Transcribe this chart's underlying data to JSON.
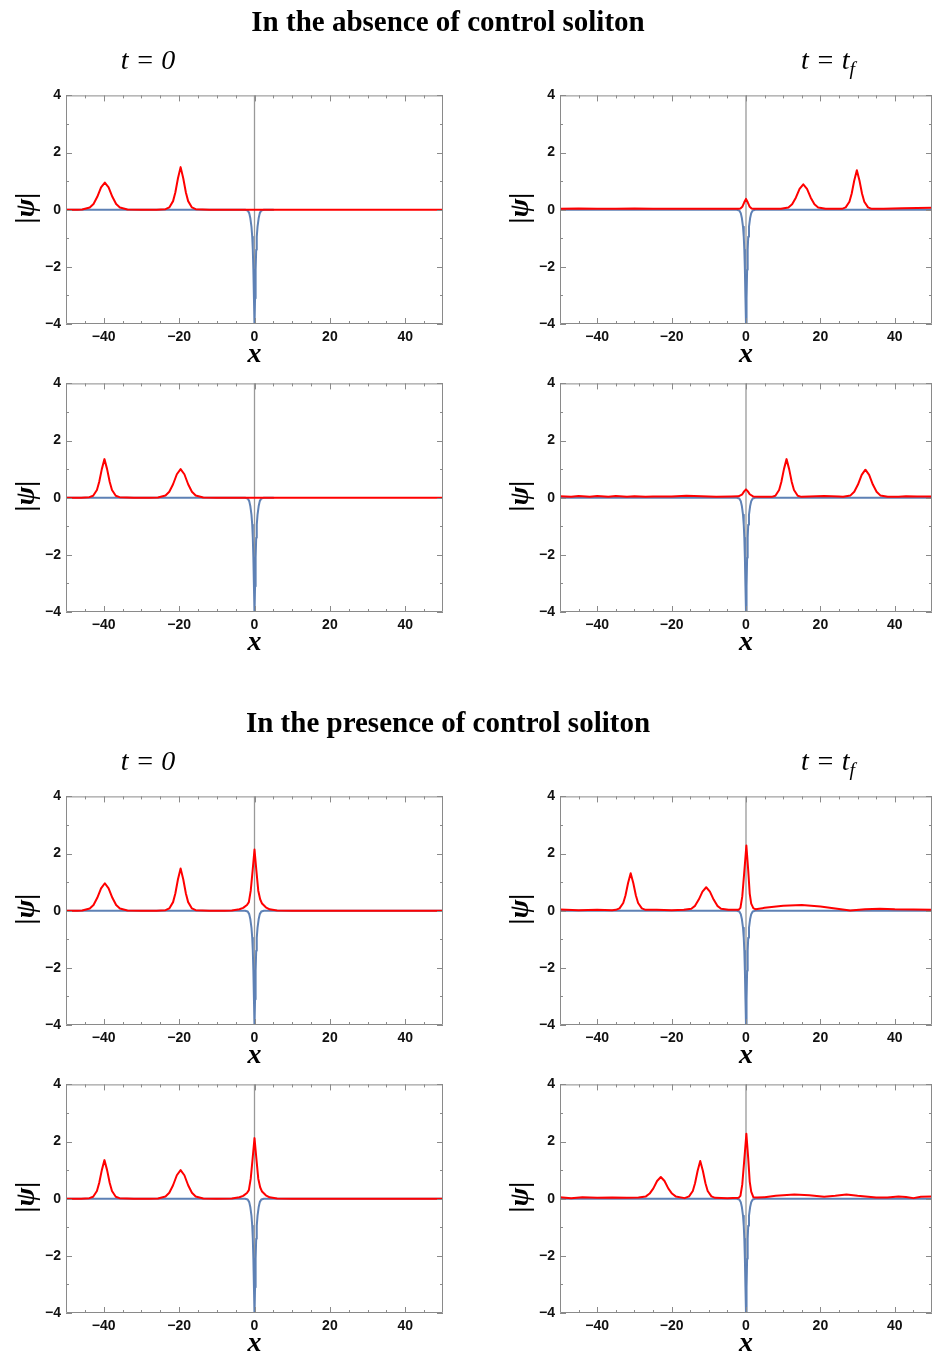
{
  "chart_data": [
    {
      "type": "line",
      "title": "In the absence of control soliton",
      "subtitle": "t = 0",
      "xlabel": "x",
      "ylabel": "|ψ|",
      "xlim": [
        -50,
        50
      ],
      "ylim": [
        -4,
        4
      ],
      "xticks": [
        {
          "value": -45,
          "label": null
        },
        {
          "value": -40,
          "label": "−40"
        },
        {
          "value": -35,
          "label": null
        },
        {
          "value": -30,
          "label": null
        },
        {
          "value": -25,
          "label": null
        },
        {
          "value": -20,
          "label": "−20"
        },
        {
          "value": -15,
          "label": null
        },
        {
          "value": -10,
          "label": null
        },
        {
          "value": -5,
          "label": null
        },
        0,
        {
          "value": 5,
          "label": null
        },
        {
          "value": 10,
          "label": null
        },
        {
          "value": 15,
          "label": null
        },
        20,
        {
          "value": 25,
          "label": null
        },
        {
          "value": 30,
          "label": null
        },
        {
          "value": 35,
          "label": null
        },
        40,
        {
          "value": 45,
          "label": null
        }
      ],
      "yticks": [
        {
          "value": -4,
          "label": "−4"
        },
        {
          "value": -3,
          "label": null
        },
        {
          "value": -2,
          "label": "−2"
        },
        {
          "value": -1,
          "label": null
        },
        0,
        {
          "value": 1,
          "label": null
        },
        2,
        {
          "value": 3,
          "label": null
        },
        4
      ],
      "ref_lines": [
        {
          "axis": "x",
          "value": 0,
          "color": "#999999"
        }
      ],
      "series": [
        {
          "color": "#ff0000",
          "x": [
            -50,
            -47,
            -45.7,
            -43.7,
            -42.7,
            -41.7,
            -40.7,
            -39.7,
            -38.7,
            -37.7,
            -36.7,
            -35.7,
            -33.7,
            -30,
            -26,
            -23.6,
            -22.6,
            -21.6,
            -21,
            -20.3,
            -19.6,
            -18.9,
            -18.2,
            -17.6,
            -16.6,
            -15.6,
            -12,
            -5,
            0,
            5,
            20,
            35,
            50
          ],
          "values": [
            0,
            0,
            0.01,
            0.08,
            0.2,
            0.45,
            0.78,
            0.95,
            0.78,
            0.45,
            0.2,
            0.08,
            0.01,
            0,
            0,
            0.02,
            0.08,
            0.3,
            0.6,
            1.1,
            1.49,
            1.1,
            0.6,
            0.3,
            0.08,
            0.02,
            0,
            0,
            0,
            0,
            0,
            0,
            0
          ]
        },
        {
          "color": "#5e81b5",
          "x": [
            -50,
            -20,
            -5,
            -2.5,
            -1.8,
            -1.4,
            -1.1,
            -0.8,
            -0.6,
            -0.45,
            -0.3,
            -0.15,
            0,
            0.15,
            0.3,
            0.45,
            0.6,
            0.8,
            1.1,
            1.4,
            1.8,
            2.5,
            5
          ],
          "values": [
            0,
            0,
            0,
            0,
            -0.03,
            -0.12,
            -0.3,
            -0.6,
            -0.95,
            -1.4,
            -2.1,
            -3.1,
            -4,
            -3.1,
            -2.1,
            -1.4,
            -0.95,
            -0.6,
            -0.3,
            -0.12,
            -0.03,
            0,
            0
          ]
        }
      ]
    },
    {
      "type": "line",
      "subtitle": "t = t$_{f}$",
      "xlabel": "x",
      "ylabel": "|ψ|",
      "xlim": [
        -50,
        50
      ],
      "ylim": [
        -4,
        4
      ],
      "xticks": [
        {
          "value": -45,
          "label": null
        },
        {
          "value": -40,
          "label": "−40"
        },
        {
          "value": -35,
          "label": null
        },
        {
          "value": -30,
          "label": null
        },
        {
          "value": -25,
          "label": null
        },
        {
          "value": -20,
          "label": "−20"
        },
        {
          "value": -15,
          "label": null
        },
        {
          "value": -10,
          "label": null
        },
        {
          "value": -5,
          "label": null
        },
        0,
        {
          "value": 5,
          "label": null
        },
        {
          "value": 10,
          "label": null
        },
        {
          "value": 15,
          "label": null
        },
        20,
        {
          "value": 25,
          "label": null
        },
        {
          "value": 30,
          "label": null
        },
        {
          "value": 35,
          "label": null
        },
        40,
        {
          "value": 45,
          "label": null
        }
      ],
      "yticks": [
        {
          "value": -4,
          "label": "−4"
        },
        {
          "value": -3,
          "label": null
        },
        {
          "value": -2,
          "label": "−2"
        },
        {
          "value": -1,
          "label": null
        },
        0,
        {
          "value": 1,
          "label": null
        },
        2,
        {
          "value": 3,
          "label": null
        },
        4
      ],
      "ref_lines": [
        {
          "axis": "x",
          "value": 0,
          "color": "#999999"
        }
      ],
      "series": [
        {
          "color": "#ff0000",
          "x": [
            -50,
            -45,
            -40,
            -35,
            -30,
            -25,
            -20,
            -15,
            -10,
            -5,
            -2,
            -1.5,
            -1,
            -0.5,
            0,
            0.5,
            1,
            1.5,
            2,
            5,
            9.4,
            11.4,
            12.4,
            13.4,
            14.4,
            15.4,
            16.4,
            17.4,
            18.4,
            19.4,
            21.4,
            25,
            25.8,
            26.8,
            27.8,
            28.4,
            29.1,
            29.8,
            30.5,
            31.2,
            31.8,
            32.8,
            33.8,
            37,
            42,
            46,
            50
          ],
          "values": [
            0.03,
            0.04,
            0.03,
            0.03,
            0.04,
            0.03,
            0.03,
            0.03,
            0.03,
            0.03,
            0.03,
            0.04,
            0.1,
            0.25,
            0.38,
            0.25,
            0.1,
            0.04,
            0.03,
            0.03,
            0.03,
            0.08,
            0.19,
            0.42,
            0.73,
            0.89,
            0.73,
            0.42,
            0.19,
            0.08,
            0.03,
            0.03,
            0.03,
            0.08,
            0.28,
            0.56,
            1.02,
            1.38,
            1.02,
            0.56,
            0.28,
            0.08,
            0.03,
            0.03,
            0.05,
            0.06,
            0.07
          ]
        },
        {
          "color": "#5e81b5",
          "x": [
            -50,
            -20,
            -5,
            -2.5,
            -1.8,
            -1.4,
            -1.1,
            -0.8,
            -0.6,
            -0.45,
            -0.3,
            -0.15,
            0,
            0.15,
            0.3,
            0.45,
            0.6,
            0.8,
            1.1,
            1.4,
            1.8,
            2.5,
            5,
            20,
            50
          ],
          "values": [
            0,
            0,
            0,
            0,
            -0.03,
            -0.12,
            -0.3,
            -0.6,
            -0.95,
            -1.4,
            -2.1,
            -3.1,
            -4,
            -3.1,
            -2.1,
            -1.4,
            -0.95,
            -0.6,
            -0.3,
            -0.12,
            -0.03,
            0,
            0,
            0,
            0
          ]
        }
      ]
    },
    {
      "type": "line",
      "xlabel": "x",
      "ylabel": "|ψ|",
      "xlim": [
        -50,
        50
      ],
      "ylim": [
        -4,
        4
      ],
      "xticks": [
        {
          "value": -45,
          "label": null
        },
        {
          "value": -40,
          "label": "−40"
        },
        {
          "value": -35,
          "label": null
        },
        {
          "value": -30,
          "label": null
        },
        {
          "value": -25,
          "label": null
        },
        {
          "value": -20,
          "label": "−20"
        },
        {
          "value": -15,
          "label": null
        },
        {
          "value": -10,
          "label": null
        },
        {
          "value": -5,
          "label": null
        },
        0,
        {
          "value": 5,
          "label": null
        },
        {
          "value": 10,
          "label": null
        },
        {
          "value": 15,
          "label": null
        },
        20,
        {
          "value": 25,
          "label": null
        },
        {
          "value": 30,
          "label": null
        },
        {
          "value": 35,
          "label": null
        },
        40,
        {
          "value": 45,
          "label": null
        }
      ],
      "yticks": [
        {
          "value": -4,
          "label": "−4"
        },
        {
          "value": -3,
          "label": null
        },
        {
          "value": -2,
          "label": "−2"
        },
        {
          "value": -1,
          "label": null
        },
        0,
        {
          "value": 1,
          "label": null
        },
        2,
        {
          "value": 3,
          "label": null
        },
        4
      ],
      "ref_lines": [
        {
          "axis": "x",
          "value": 0,
          "color": "#999999"
        }
      ],
      "series": [
        {
          "color": "#ff0000",
          "x": [
            -50,
            -46,
            -43.8,
            -42.8,
            -41.8,
            -41.2,
            -40.5,
            -39.8,
            -39.1,
            -38.4,
            -37.8,
            -36.8,
            -35.8,
            -32,
            -28,
            -25.6,
            -23.6,
            -22.6,
            -21.6,
            -20.6,
            -19.6,
            -18.6,
            -17.6,
            -16.6,
            -15.6,
            -13.6,
            -10,
            -5,
            0,
            5,
            20,
            35,
            50
          ],
          "values": [
            0,
            0,
            0.02,
            0.07,
            0.27,
            0.55,
            1.0,
            1.35,
            1.0,
            0.55,
            0.27,
            0.07,
            0.02,
            0,
            0,
            0.01,
            0.08,
            0.21,
            0.47,
            0.82,
            1.0,
            0.82,
            0.47,
            0.21,
            0.08,
            0.01,
            0,
            0,
            0,
            0,
            0,
            0,
            0
          ]
        },
        {
          "color": "#5e81b5",
          "x": [
            -50,
            -20,
            -5,
            -2.5,
            -1.8,
            -1.4,
            -1.1,
            -0.8,
            -0.6,
            -0.45,
            -0.3,
            -0.15,
            0,
            0.15,
            0.3,
            0.45,
            0.6,
            0.8,
            1.1,
            1.4,
            1.8,
            2.5,
            5
          ],
          "values": [
            0,
            0,
            0,
            0,
            -0.03,
            -0.12,
            -0.3,
            -0.6,
            -0.95,
            -1.4,
            -2.1,
            -3.1,
            -4,
            -3.1,
            -2.1,
            -1.4,
            -0.95,
            -0.6,
            -0.3,
            -0.12,
            -0.03,
            0,
            0
          ]
        }
      ]
    },
    {
      "type": "line",
      "xlabel": "x",
      "ylabel": "|ψ|",
      "xlim": [
        -50,
        50
      ],
      "ylim": [
        -4,
        4
      ],
      "xticks": [
        {
          "value": -45,
          "label": null
        },
        {
          "value": -40,
          "label": "−40"
        },
        {
          "value": -35,
          "label": null
        },
        {
          "value": -30,
          "label": null
        },
        {
          "value": -25,
          "label": null
        },
        {
          "value": -20,
          "label": "−20"
        },
        {
          "value": -15,
          "label": null
        },
        {
          "value": -10,
          "label": null
        },
        {
          "value": -5,
          "label": null
        },
        0,
        {
          "value": 5,
          "label": null
        },
        {
          "value": 10,
          "label": null
        },
        {
          "value": 15,
          "label": null
        },
        20,
        {
          "value": 25,
          "label": null
        },
        {
          "value": 30,
          "label": null
        },
        {
          "value": 35,
          "label": null
        },
        40,
        {
          "value": 45,
          "label": null
        }
      ],
      "yticks": [
        {
          "value": -4,
          "label": "−4"
        },
        {
          "value": -3,
          "label": null
        },
        {
          "value": -2,
          "label": "−2"
        },
        {
          "value": -1,
          "label": null
        },
        0,
        {
          "value": 1,
          "label": null
        },
        2,
        {
          "value": 3,
          "label": null
        },
        4
      ],
      "ref_lines": [
        {
          "axis": "x",
          "value": 0,
          "color": "#999999"
        }
      ],
      "series": [
        {
          "color": "#ff0000",
          "x": [
            -50,
            -47,
            -45,
            -42,
            -40,
            -37,
            -35,
            -32,
            -30,
            -27,
            -25,
            -20,
            -16,
            -12,
            -8,
            -4,
            -2,
            -1,
            -0.5,
            0,
            0.5,
            1,
            2,
            4,
            6.9,
            7.9,
            8.9,
            9.5,
            10.2,
            10.9,
            11.6,
            12.3,
            12.9,
            13.9,
            14.9,
            17,
            21,
            25,
            26.1,
            28.1,
            29.1,
            30.1,
            31.1,
            32.1,
            33.1,
            34.1,
            35.1,
            36.1,
            38.1,
            41,
            43,
            46,
            50
          ],
          "values": [
            0.05,
            0.03,
            0.06,
            0.03,
            0.06,
            0.03,
            0.06,
            0.03,
            0.05,
            0.03,
            0.04,
            0.04,
            0.07,
            0.05,
            0.03,
            0.04,
            0.05,
            0.12,
            0.22,
            0.29,
            0.22,
            0.12,
            0.04,
            0.03,
            0.03,
            0.07,
            0.27,
            0.55,
            1.0,
            1.35,
            1.0,
            0.55,
            0.27,
            0.07,
            0.03,
            0.04,
            0.06,
            0.04,
            0.03,
            0.08,
            0.21,
            0.46,
            0.8,
            0.98,
            0.8,
            0.46,
            0.21,
            0.08,
            0.03,
            0.03,
            0.05,
            0.04,
            0.04
          ]
        },
        {
          "color": "#5e81b5",
          "x": [
            -50,
            -20,
            -5,
            -2.5,
            -1.8,
            -1.4,
            -1.1,
            -0.8,
            -0.6,
            -0.45,
            -0.3,
            -0.15,
            0,
            0.15,
            0.3,
            0.45,
            0.6,
            0.8,
            1.1,
            1.4,
            1.8,
            2.5,
            5,
            20,
            50
          ],
          "values": [
            0,
            0,
            0,
            0,
            -0.03,
            -0.12,
            -0.3,
            -0.6,
            -0.95,
            -1.4,
            -2.1,
            -3.1,
            -4,
            -3.1,
            -2.1,
            -1.4,
            -0.95,
            -0.6,
            -0.3,
            -0.12,
            -0.03,
            0,
            0,
            0,
            0
          ]
        }
      ]
    },
    {
      "type": "line",
      "title": "In the presence of control soliton",
      "subtitle": "t = 0",
      "xlabel": "x",
      "ylabel": "|ψ|",
      "xlim": [
        -50,
        50
      ],
      "ylim": [
        -4,
        4
      ],
      "xticks": [
        {
          "value": -45,
          "label": null
        },
        {
          "value": -40,
          "label": "−40"
        },
        {
          "value": -35,
          "label": null
        },
        {
          "value": -30,
          "label": null
        },
        {
          "value": -25,
          "label": null
        },
        {
          "value": -20,
          "label": "−20"
        },
        {
          "value": -15,
          "label": null
        },
        {
          "value": -10,
          "label": null
        },
        {
          "value": -5,
          "label": null
        },
        0,
        {
          "value": 5,
          "label": null
        },
        {
          "value": 10,
          "label": null
        },
        {
          "value": 15,
          "label": null
        },
        20,
        {
          "value": 25,
          "label": null
        },
        {
          "value": 30,
          "label": null
        },
        {
          "value": 35,
          "label": null
        },
        40,
        {
          "value": 45,
          "label": null
        }
      ],
      "yticks": [
        {
          "value": -4,
          "label": "−4"
        },
        {
          "value": -3,
          "label": null
        },
        {
          "value": -2,
          "label": "−2"
        },
        {
          "value": -1,
          "label": null
        },
        0,
        {
          "value": 1,
          "label": null
        },
        2,
        {
          "value": 3,
          "label": null
        },
        4
      ],
      "ref_lines": [
        {
          "axis": "x",
          "value": 0,
          "color": "#999999"
        }
      ],
      "series": [
        {
          "color": "#ff0000",
          "x": [
            -50,
            -47,
            -45.7,
            -43.7,
            -42.7,
            -41.7,
            -40.7,
            -39.7,
            -38.7,
            -37.7,
            -36.7,
            -35.7,
            -33.7,
            -30,
            -26,
            -23.6,
            -22.6,
            -21.6,
            -21,
            -20.3,
            -19.6,
            -18.9,
            -18.2,
            -17.6,
            -16.6,
            -15.6,
            -12,
            -8,
            -6,
            -4,
            -3,
            -2,
            -1.5,
            -1,
            -0.5,
            0,
            0.5,
            1,
            1.5,
            2,
            3,
            4,
            6,
            10,
            20,
            35,
            50
          ],
          "values": [
            0,
            0,
            0.01,
            0.08,
            0.2,
            0.45,
            0.78,
            0.96,
            0.78,
            0.45,
            0.2,
            0.08,
            0.01,
            0,
            0,
            0.02,
            0.08,
            0.3,
            0.6,
            1.1,
            1.48,
            1.1,
            0.6,
            0.3,
            0.08,
            0.02,
            0,
            0,
            0.01,
            0.05,
            0.1,
            0.2,
            0.3,
            0.7,
            1.4,
            2.14,
            1.4,
            0.7,
            0.4,
            0.25,
            0.12,
            0.05,
            0.01,
            0,
            0,
            0,
            0
          ]
        },
        {
          "color": "#5e81b5",
          "x": [
            -50,
            -20,
            -5,
            -2.5,
            -1.8,
            -1.4,
            -1.1,
            -0.8,
            -0.6,
            -0.45,
            -0.3,
            -0.15,
            0,
            0.15,
            0.3,
            0.45,
            0.6,
            0.8,
            1.1,
            1.4,
            1.8,
            2.5,
            5,
            20,
            50
          ],
          "values": [
            0,
            0,
            0,
            0,
            -0.03,
            -0.12,
            -0.3,
            -0.6,
            -0.95,
            -1.4,
            -2.1,
            -3.1,
            -4,
            -3.1,
            -2.1,
            -1.4,
            -0.95,
            -0.6,
            -0.3,
            -0.12,
            -0.03,
            0,
            0,
            0,
            0
          ]
        }
      ]
    },
    {
      "type": "line",
      "subtitle": "t = t$_{f}$",
      "xlabel": "x",
      "ylabel": "|ψ|",
      "xlim": [
        -50,
        50
      ],
      "ylim": [
        -4,
        4
      ],
      "xticks": [
        {
          "value": -45,
          "label": null
        },
        {
          "value": -40,
          "label": "−40"
        },
        {
          "value": -35,
          "label": null
        },
        {
          "value": -30,
          "label": null
        },
        {
          "value": -25,
          "label": null
        },
        {
          "value": -20,
          "label": "−20"
        },
        {
          "value": -15,
          "label": null
        },
        {
          "value": -10,
          "label": null
        },
        {
          "value": -5,
          "label": null
        },
        0,
        {
          "value": 5,
          "label": null
        },
        {
          "value": 10,
          "label": null
        },
        {
          "value": 15,
          "label": null
        },
        20,
        {
          "value": 25,
          "label": null
        },
        {
          "value": 30,
          "label": null
        },
        {
          "value": 35,
          "label": null
        },
        40,
        {
          "value": 45,
          "label": null
        }
      ],
      "yticks": [
        {
          "value": -4,
          "label": "−4"
        },
        {
          "value": -3,
          "label": null
        },
        {
          "value": -2,
          "label": "−2"
        },
        {
          "value": -1,
          "label": null
        },
        0,
        {
          "value": 1,
          "label": null
        },
        2,
        {
          "value": 3,
          "label": null
        },
        4
      ],
      "ref_lines": [
        {
          "axis": "x",
          "value": 0,
          "color": "#999999"
        }
      ],
      "series": [
        {
          "color": "#ff0000",
          "x": [
            -50,
            -45,
            -40,
            -36,
            -35,
            -34,
            -33,
            -32.4,
            -31.7,
            -31,
            -30.3,
            -29.6,
            -29,
            -28,
            -27,
            -24,
            -20,
            -16.7,
            -14.7,
            -13.7,
            -12.7,
            -11.7,
            -10.7,
            -9.7,
            -8.7,
            -7.7,
            -6.7,
            -4.7,
            -2,
            -1.5,
            -1,
            -0.5,
            0.1,
            0.6,
            1,
            1.4,
            2,
            2.6,
            5,
            10,
            15,
            20,
            25,
            28,
            32,
            36,
            40,
            45,
            50
          ],
          "values": [
            0.04,
            0.02,
            0.03,
            0.02,
            0.03,
            0.08,
            0.27,
            0.53,
            0.97,
            1.31,
            0.97,
            0.53,
            0.27,
            0.08,
            0.03,
            0.03,
            0.02,
            0.03,
            0.07,
            0.17,
            0.39,
            0.67,
            0.82,
            0.67,
            0.39,
            0.17,
            0.07,
            0.03,
            0.03,
            0.1,
            0.5,
            1.3,
            2.28,
            1.4,
            0.6,
            0.25,
            0.08,
            0.05,
            0.1,
            0.17,
            0.2,
            0.15,
            0.06,
            0.01,
            0.05,
            0.07,
            0.05,
            0.04,
            0.03
          ]
        },
        {
          "color": "#5e81b5",
          "x": [
            -50,
            -20,
            -5,
            -2.5,
            -1.8,
            -1.4,
            -1.1,
            -0.8,
            -0.6,
            -0.45,
            -0.3,
            -0.15,
            0,
            0.15,
            0.3,
            0.45,
            0.6,
            0.8,
            1.1,
            1.4,
            1.8,
            2.5,
            5,
            20,
            50
          ],
          "values": [
            0,
            0,
            0,
            0,
            -0.03,
            -0.12,
            -0.3,
            -0.6,
            -0.95,
            -1.4,
            -2.1,
            -3.1,
            -4,
            -3.1,
            -2.1,
            -1.4,
            -0.95,
            -0.6,
            -0.3,
            -0.12,
            -0.03,
            0,
            0,
            0,
            0
          ]
        }
      ]
    },
    {
      "type": "line",
      "xlabel": "x",
      "ylabel": "|ψ|",
      "xlim": [
        -50,
        50
      ],
      "ylim": [
        -4,
        4
      ],
      "xticks": [
        {
          "value": -45,
          "label": null
        },
        {
          "value": -40,
          "label": "−40"
        },
        {
          "value": -35,
          "label": null
        },
        {
          "value": -30,
          "label": null
        },
        {
          "value": -25,
          "label": null
        },
        {
          "value": -20,
          "label": "−20"
        },
        {
          "value": -15,
          "label": null
        },
        {
          "value": -10,
          "label": null
        },
        {
          "value": -5,
          "label": null
        },
        0,
        {
          "value": 5,
          "label": null
        },
        {
          "value": 10,
          "label": null
        },
        {
          "value": 15,
          "label": null
        },
        20,
        {
          "value": 25,
          "label": null
        },
        {
          "value": 30,
          "label": null
        },
        {
          "value": 35,
          "label": null
        },
        40,
        {
          "value": 45,
          "label": null
        }
      ],
      "yticks": [
        {
          "value": -4,
          "label": "−4"
        },
        {
          "value": -3,
          "label": null
        },
        {
          "value": -2,
          "label": "−2"
        },
        {
          "value": -1,
          "label": null
        },
        0,
        {
          "value": 1,
          "label": null
        },
        2,
        {
          "value": 3,
          "label": null
        },
        4
      ],
      "ref_lines": [
        {
          "axis": "x",
          "value": 0,
          "color": "#999999"
        }
      ],
      "series": [
        {
          "color": "#ff0000",
          "x": [
            -50,
            -46,
            -43.8,
            -42.8,
            -41.8,
            -41.2,
            -40.5,
            -39.8,
            -39.1,
            -38.4,
            -37.8,
            -36.8,
            -35.8,
            -32,
            -28,
            -25.6,
            -23.6,
            -22.6,
            -21.6,
            -20.6,
            -19.6,
            -18.6,
            -17.6,
            -16.6,
            -15.6,
            -13.6,
            -10,
            -6,
            -4,
            -3,
            -2,
            -1.5,
            -1,
            -0.5,
            0,
            0.5,
            1,
            1.5,
            2,
            3,
            4,
            6,
            10,
            20,
            35,
            50
          ],
          "values": [
            0,
            0,
            0.02,
            0.07,
            0.27,
            0.55,
            1.0,
            1.35,
            1.0,
            0.55,
            0.27,
            0.07,
            0.02,
            0,
            0,
            0.01,
            0.08,
            0.21,
            0.47,
            0.82,
            1.0,
            0.82,
            0.47,
            0.21,
            0.08,
            0.01,
            0,
            0.01,
            0.05,
            0.1,
            0.2,
            0.3,
            0.7,
            1.4,
            2.12,
            1.4,
            0.7,
            0.4,
            0.25,
            0.12,
            0.05,
            0.01,
            0,
            0,
            0,
            0
          ]
        },
        {
          "color": "#5e81b5",
          "x": [
            -50,
            -20,
            -5,
            -2.5,
            -1.8,
            -1.4,
            -1.1,
            -0.8,
            -0.6,
            -0.45,
            -0.3,
            -0.15,
            0,
            0.15,
            0.3,
            0.45,
            0.6,
            0.8,
            1.1,
            1.4,
            1.8,
            2.5,
            5,
            20,
            50
          ],
          "values": [
            0,
            0,
            0,
            0,
            -0.03,
            -0.12,
            -0.3,
            -0.6,
            -0.95,
            -1.4,
            -2.1,
            -3.1,
            -4,
            -3.1,
            -2.1,
            -1.4,
            -0.95,
            -0.6,
            -0.3,
            -0.12,
            -0.03,
            0,
            0,
            0,
            0
          ]
        }
      ]
    },
    {
      "type": "line",
      "xlabel": "x",
      "ylabel": "|ψ|",
      "xlim": [
        -50,
        50
      ],
      "ylim": [
        -4,
        4
      ],
      "xticks": [
        {
          "value": -45,
          "label": null
        },
        {
          "value": -40,
          "label": "−40"
        },
        {
          "value": -35,
          "label": null
        },
        {
          "value": -30,
          "label": null
        },
        {
          "value": -25,
          "label": null
        },
        {
          "value": -20,
          "label": "−20"
        },
        {
          "value": -15,
          "label": null
        },
        {
          "value": -10,
          "label": null
        },
        {
          "value": -5,
          "label": null
        },
        0,
        {
          "value": 5,
          "label": null
        },
        {
          "value": 10,
          "label": null
        },
        {
          "value": 15,
          "label": null
        },
        20,
        {
          "value": 25,
          "label": null
        },
        {
          "value": 30,
          "label": null
        },
        {
          "value": 35,
          "label": null
        },
        40,
        {
          "value": 45,
          "label": null
        }
      ],
      "yticks": [
        {
          "value": -4,
          "label": "−4"
        },
        {
          "value": -3,
          "label": null
        },
        {
          "value": -2,
          "label": "−2"
        },
        {
          "value": -1,
          "label": null
        },
        0,
        {
          "value": 1,
          "label": null
        },
        2,
        {
          "value": 3,
          "label": null
        },
        4
      ],
      "ref_lines": [
        {
          "axis": "x",
          "value": 0,
          "color": "#999999"
        }
      ],
      "series": [
        {
          "color": "#ff0000",
          "x": [
            -50,
            -47,
            -44,
            -40,
            -36,
            -32,
            -28.9,
            -26.9,
            -25.9,
            -24.9,
            -23.9,
            -22.9,
            -21.9,
            -20.9,
            -19.9,
            -18.9,
            -16.5,
            -15.3,
            -14.3,
            -13.7,
            -13,
            -12.3,
            -11.6,
            -10.9,
            -10.3,
            -9.3,
            -8.3,
            -5,
            -2,
            -1.5,
            -1,
            -0.5,
            0.1,
            0.6,
            1,
            1.4,
            2,
            3,
            5,
            8,
            13,
            17,
            21,
            24,
            27,
            30,
            35,
            38,
            41,
            43,
            45,
            47,
            50
          ],
          "values": [
            0.05,
            0.02,
            0.05,
            0.03,
            0.04,
            0.03,
            0.04,
            0.08,
            0.18,
            0.36,
            0.62,
            0.76,
            0.62,
            0.36,
            0.18,
            0.08,
            0.02,
            0.08,
            0.27,
            0.54,
            0.98,
            1.32,
            0.98,
            0.54,
            0.27,
            0.08,
            0.03,
            0.02,
            0.03,
            0.1,
            0.5,
            1.3,
            2.27,
            1.4,
            0.6,
            0.25,
            0.05,
            0.04,
            0.05,
            0.1,
            0.15,
            0.12,
            0.07,
            0.1,
            0.15,
            0.1,
            0.04,
            0.04,
            0.08,
            0.06,
            0.02,
            0.07,
            0.08
          ]
        },
        {
          "color": "#5e81b5",
          "x": [
            -50,
            -20,
            -5,
            -2.5,
            -1.8,
            -1.4,
            -1.1,
            -0.8,
            -0.6,
            -0.45,
            -0.3,
            -0.15,
            0,
            0.15,
            0.3,
            0.45,
            0.6,
            0.8,
            1.1,
            1.4,
            1.8,
            2.5,
            5,
            20,
            50
          ],
          "values": [
            0,
            0,
            0,
            0,
            -0.03,
            -0.12,
            -0.3,
            -0.6,
            -0.95,
            -1.4,
            -2.1,
            -3.1,
            -4,
            -3.1,
            -2.1,
            -1.4,
            -0.95,
            -0.6,
            -0.3,
            -0.12,
            -0.03,
            0,
            0,
            0,
            0
          ]
        }
      ]
    }
  ]
}
